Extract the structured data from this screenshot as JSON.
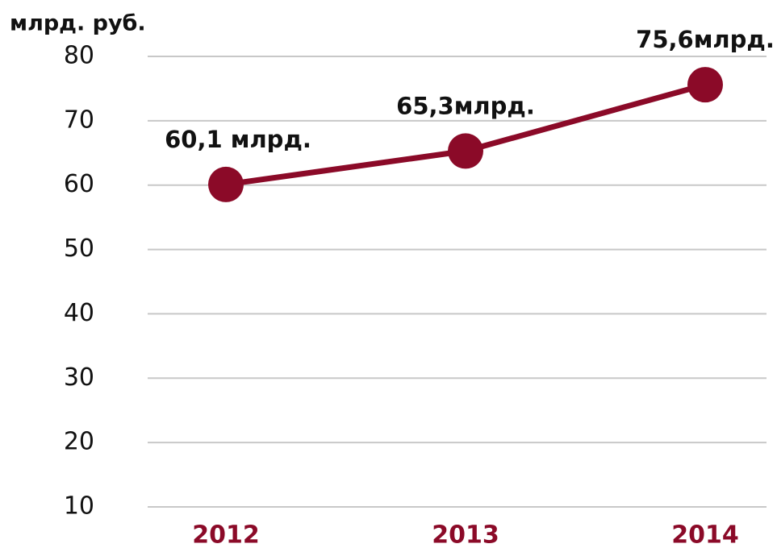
{
  "chart_data": {
    "type": "line",
    "y_axis_label": "млрд. руб.",
    "categories": [
      "2012",
      "2013",
      "2014"
    ],
    "series": [
      {
        "name": null,
        "color": "#8b0a28",
        "values": [
          60.1,
          65.3,
          75.6
        ],
        "value_labels": [
          "60,1 млрд.",
          "65,3млрд.",
          "75,6млрд."
        ]
      }
    ],
    "ylim": [
      10,
      80
    ],
    "yticks": [
      10,
      20,
      30,
      40,
      50,
      60,
      70,
      80
    ],
    "grid": true,
    "grid_color": "#c8c8c8",
    "category_color": "#8b0a28"
  }
}
